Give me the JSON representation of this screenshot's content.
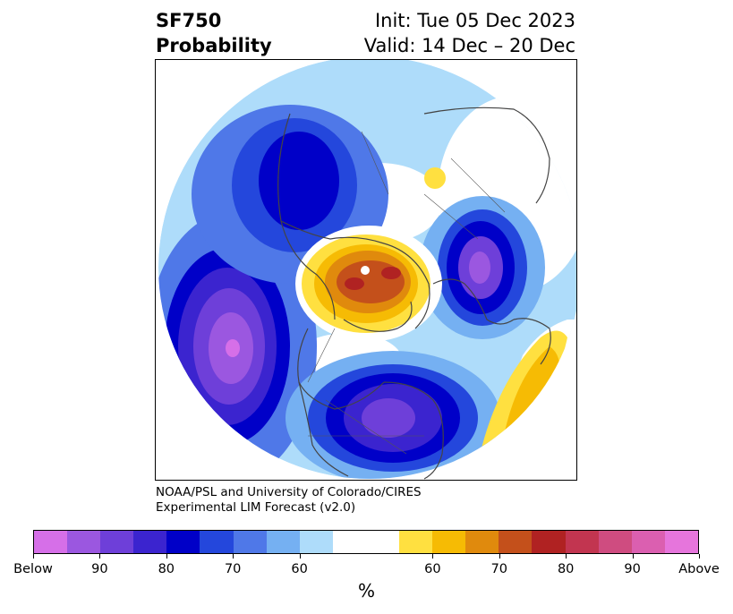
{
  "header": {
    "title_line1": "SF750",
    "title_line2": "Probability",
    "init_text": "Init: Tue 05 Dec 2023",
    "valid_text": "Valid: 14 Dec – 20 Dec"
  },
  "credit": {
    "line1": "NOAA/PSL and University of Colorado/CIRES",
    "line2": "Experimental LIM Forecast (v2.0)"
  },
  "colorbar": {
    "colors": [
      "#d66fe8",
      "#9b57e0",
      "#6e3fd9",
      "#3b24cf",
      "#0000c8",
      "#2447dc",
      "#4f78e8",
      "#75b0f2",
      "#aedcfa",
      "#ffffff",
      "#ffffff",
      "#ffe040",
      "#f6bb04",
      "#e08a0d",
      "#c4501b",
      "#b02222",
      "#c23550",
      "#cf4c80",
      "#db5fb0",
      "#e675dc"
    ],
    "ticks": [
      "Below",
      "90",
      "80",
      "70",
      "60",
      "60",
      "70",
      "80",
      "90",
      "Above"
    ],
    "units": "%"
  },
  "map": {
    "projection": "polar-stereographic-north",
    "palette": {
      "land_line": "#444444",
      "blue1": "#aedcfa",
      "blue2": "#75b0f2",
      "blue3": "#4f78e8",
      "blue4": "#2447dc",
      "blue5": "#0000c8",
      "blue6": "#3b24cf",
      "blue7": "#6e3fd9",
      "blue8": "#9b57e0",
      "blue9": "#d66fe8",
      "yel1": "#ffe040",
      "yel2": "#f6bb04",
      "or1": "#e08a0d",
      "or2": "#c4501b",
      "red1": "#b02222"
    }
  }
}
